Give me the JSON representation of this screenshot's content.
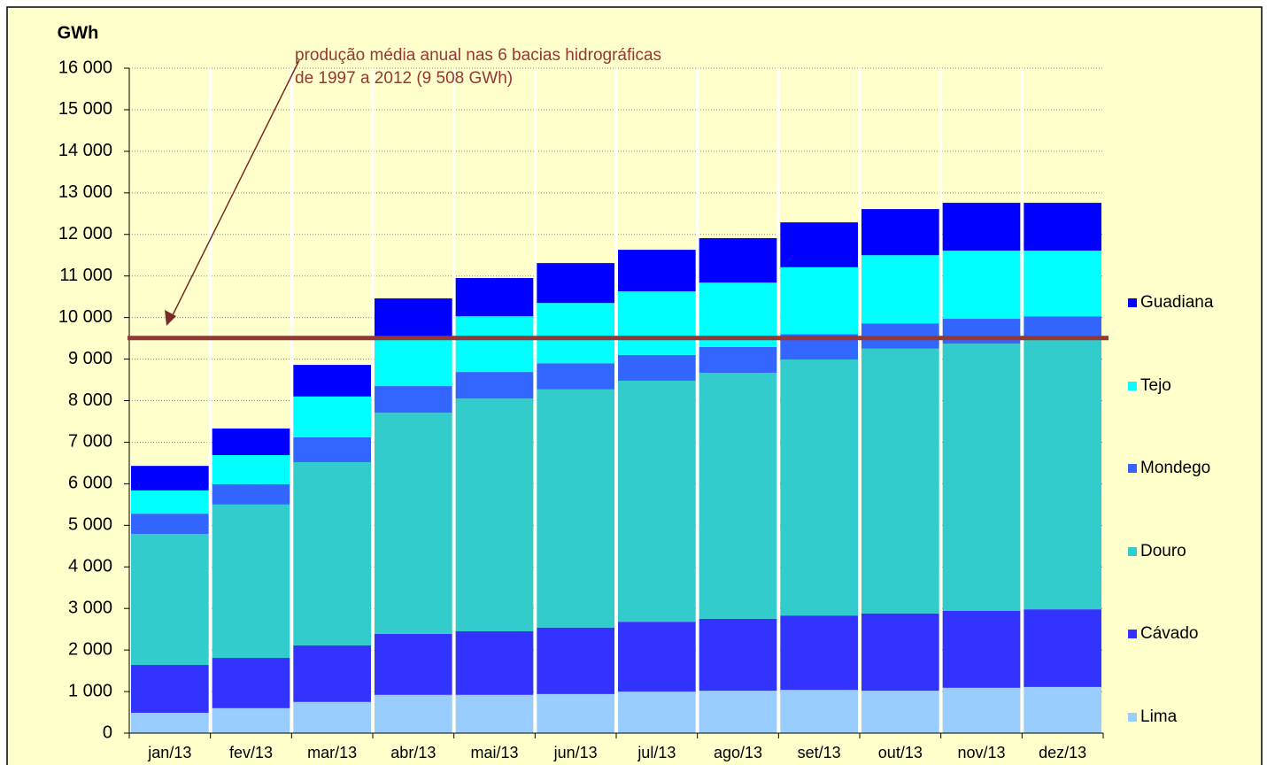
{
  "chart_data": {
    "type": "stacked_bar",
    "y_label": "GWh",
    "categories": [
      "jan/13",
      "fev/13",
      "mar/13",
      "abr/13",
      "mai/13",
      "jun/13",
      "jul/13",
      "ago/13",
      "set/13",
      "out/13",
      "nov/13",
      "dez/13"
    ],
    "series": [
      {
        "name": "Lima",
        "color": "#99ccff",
        "values": [
          490,
          600,
          750,
          920,
          920,
          940,
          1000,
          1020,
          1040,
          1020,
          1090,
          1110
        ]
      },
      {
        "name": "Cávado",
        "color": "#3333ff",
        "values": [
          1150,
          1210,
          1360,
          1470,
          1530,
          1600,
          1680,
          1730,
          1790,
          1860,
          1850,
          1870
        ]
      },
      {
        "name": "Douro",
        "color": "#33cccc",
        "values": [
          3150,
          3690,
          4410,
          5320,
          5600,
          5730,
          5800,
          5920,
          6160,
          6370,
          6430,
          6480
        ]
      },
      {
        "name": "Mondego",
        "color": "#3366ff",
        "values": [
          490,
          490,
          600,
          640,
          640,
          630,
          620,
          620,
          610,
          610,
          600,
          570
        ]
      },
      {
        "name": "Tejo",
        "color": "#00ffff",
        "values": [
          560,
          700,
          980,
          1190,
          1340,
          1450,
          1530,
          1550,
          1610,
          1640,
          1640,
          1580
        ]
      },
      {
        "name": "Guadiana",
        "color": "#0000ff",
        "values": [
          590,
          640,
          760,
          920,
          920,
          960,
          1000,
          1070,
          1080,
          1110,
          1150,
          1150
        ]
      }
    ],
    "ylim": [
      0,
      16000
    ],
    "yticks": [
      0,
      {
        "value": 1000,
        "label": "1 000"
      },
      {
        "value": 2000,
        "label": "2 000"
      },
      {
        "value": 3000,
        "label": "3 000"
      },
      {
        "value": 4000,
        "label": "4 000"
      },
      {
        "value": 5000,
        "label": "5 000"
      },
      {
        "value": 6000,
        "label": "6 000"
      },
      {
        "value": 7000,
        "label": "7 000"
      },
      {
        "value": 8000,
        "label": "8 000"
      },
      {
        "value": 9000,
        "label": "9 000"
      },
      {
        "value": 10000,
        "label": "10 000"
      },
      {
        "value": 11000,
        "label": "11 000"
      },
      {
        "value": 12000,
        "label": "12 000"
      },
      {
        "value": 13000,
        "label": "13 000"
      },
      {
        "value": 14000,
        "label": "14 000"
      },
      {
        "value": 15000,
        "label": "15 000"
      },
      {
        "value": 16000,
        "label": "16 000"
      }
    ],
    "grid": true,
    "reference_line": {
      "value": 9508,
      "color": "#953735",
      "label_lines": [
        "produção média anual nas 6 bacias hidrográficas",
        "de 1997 a 2012 (9 508 GWh)"
      ]
    },
    "legend": "right"
  }
}
